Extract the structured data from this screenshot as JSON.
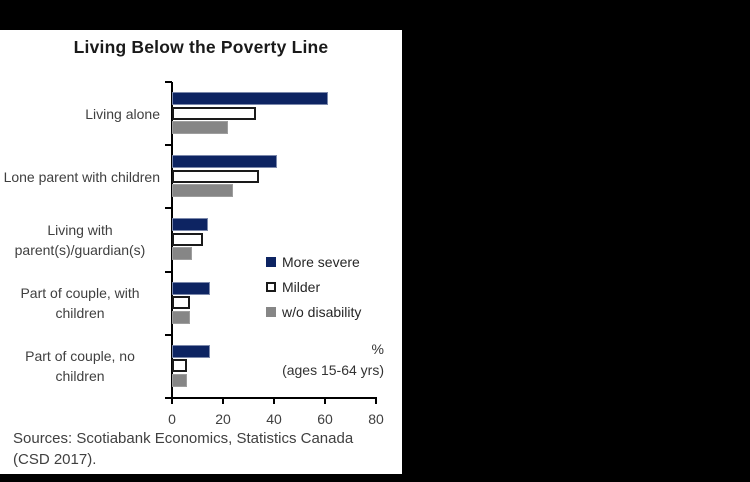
{
  "title": "Living Below the Poverty Line",
  "chart_data": {
    "type": "bar",
    "orientation": "horizontal",
    "title": "Living Below the Poverty Line",
    "categories": [
      "Living alone",
      "Lone parent with children",
      "Living with parent(s)/guardian(s)",
      "Part of couple, with children",
      "Part of couple, no children"
    ],
    "series": [
      {
        "name": "More severe",
        "color": "#0d2462",
        "border_color": "#7b88ab",
        "border_width": 1,
        "values": [
          61,
          41,
          14,
          15,
          15
        ]
      },
      {
        "name": "Milder",
        "color": "#ffffff",
        "border_color": "#1a1a1a",
        "border_width": 2,
        "values": [
          33,
          34,
          12,
          7,
          6
        ]
      },
      {
        "name": "w/o disability",
        "color": "#868686",
        "border_color": "#9e9e9e",
        "border_width": 1,
        "values": [
          22,
          24,
          8,
          7,
          6
        ]
      }
    ],
    "xlim": [
      0,
      80
    ],
    "xticks": [
      0,
      20,
      40,
      60,
      80
    ],
    "legend_position": "middle-right",
    "grid": false,
    "unit_note_line1": "%",
    "unit_note_line2": "(ages 15-64 yrs)"
  },
  "sources": {
    "line1": "Sources: Scotiabank Economics, Statistics Canada",
    "line2": "(CSD 2017)."
  }
}
